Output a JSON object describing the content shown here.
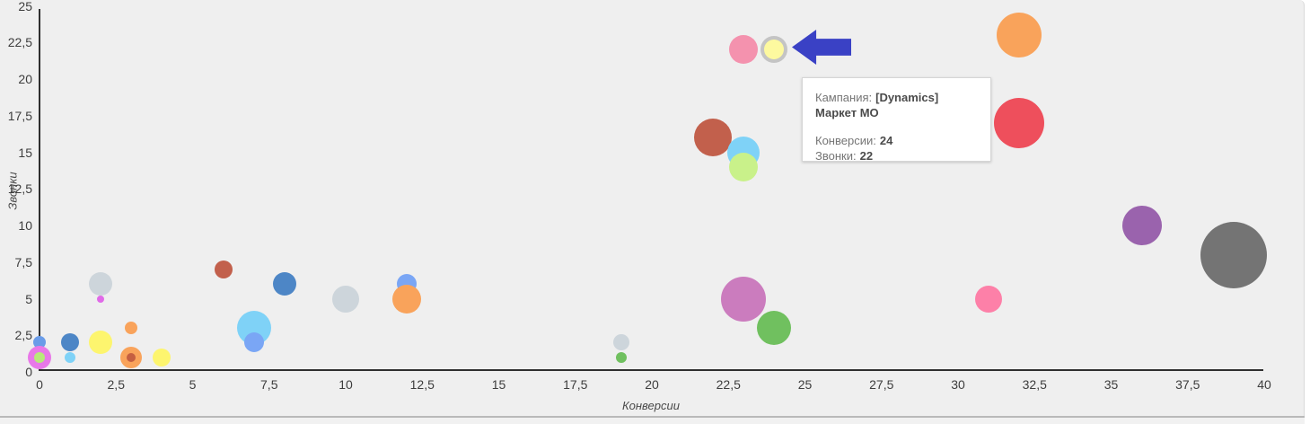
{
  "colors": {
    "background": "#efefef",
    "axis_line": "#2f2f2f",
    "divider": "#b9b9b9",
    "cursor_arrow": "#3a41c5"
  },
  "tooltip": {
    "campaign_label": "Кампания:",
    "campaign_value": "[Dynamics] Маркет МО",
    "conversions_label": "Конверсии:",
    "conversions_value": "24",
    "calls_label": "Звонки:",
    "calls_value": "22"
  },
  "chart_data": {
    "type": "scatter",
    "subtype": "bubble",
    "title": "",
    "xlabel": "Конверсии",
    "ylabel": "Звонки",
    "xlim": [
      0,
      40
    ],
    "ylim": [
      0,
      25
    ],
    "grid": false,
    "legend": "none",
    "x_ticks": [
      "0",
      "2,5",
      "5",
      "7,5",
      "10",
      "12,5",
      "15",
      "17,5",
      "20",
      "22,5",
      "25",
      "27,5",
      "30",
      "32,5",
      "35",
      "37,5",
      "40"
    ],
    "y_ticks": [
      "0",
      "2,5",
      "5",
      "7,5",
      "10",
      "12,5",
      "15",
      "17,5",
      "20",
      "22,5",
      "25"
    ],
    "points": [
      {
        "x": 0,
        "y": 2,
        "r": 7,
        "color": "#6a9ce8"
      },
      {
        "x": 0,
        "y": 1,
        "r": 13,
        "color": "#e878e8"
      },
      {
        "x": 0,
        "y": 1,
        "r": 6,
        "color": "#b8e87a"
      },
      {
        "x": 1,
        "y": 2,
        "r": 10,
        "color": "#4d86c6"
      },
      {
        "x": 1,
        "y": 1,
        "r": 6,
        "color": "#7fd2f7"
      },
      {
        "x": 2,
        "y": 6,
        "r": 13,
        "color": "#cdd5db"
      },
      {
        "x": 2,
        "y": 5,
        "r": 4,
        "color": "#e06ae8"
      },
      {
        "x": 2,
        "y": 2,
        "r": 13,
        "color": "#fdf56e"
      },
      {
        "x": 3,
        "y": 3,
        "r": 7,
        "color": "#f9a35b"
      },
      {
        "x": 3,
        "y": 1,
        "r": 12,
        "color": "#f9a35b"
      },
      {
        "x": 3,
        "y": 1,
        "r": 5,
        "color": "#c55f41"
      },
      {
        "x": 4,
        "y": 1,
        "r": 10,
        "color": "#fdf56e"
      },
      {
        "x": 6,
        "y": 7,
        "r": 10,
        "color": "#c2604c"
      },
      {
        "x": 7,
        "y": 3,
        "r": 19,
        "color": "#7fd2f7"
      },
      {
        "x": 7,
        "y": 2,
        "r": 11,
        "color": "#7aa6f5"
      },
      {
        "x": 8,
        "y": 6,
        "r": 13,
        "color": "#4d86c6"
      },
      {
        "x": 10,
        "y": 5,
        "r": 15,
        "color": "#cdd5db"
      },
      {
        "x": 12,
        "y": 6,
        "r": 11,
        "color": "#7aa6f5"
      },
      {
        "x": 12,
        "y": 5,
        "r": 16,
        "color": "#f9a35b"
      },
      {
        "x": 19,
        "y": 2,
        "r": 9,
        "color": "#cdd5db"
      },
      {
        "x": 19,
        "y": 1,
        "r": 6,
        "color": "#70c05f"
      },
      {
        "x": 22,
        "y": 16,
        "r": 21,
        "color": "#c2604c"
      },
      {
        "x": 23,
        "y": 15,
        "r": 18,
        "color": "#7fd2f7"
      },
      {
        "x": 23,
        "y": 14,
        "r": 16,
        "color": "#c9f18a"
      },
      {
        "x": 23,
        "y": 22,
        "r": 16,
        "color": "#f492ae"
      },
      {
        "x": 24,
        "y": 22,
        "r": 11,
        "color": "#fdf99f",
        "highlight": true
      },
      {
        "x": 23,
        "y": 5,
        "r": 25,
        "color": "#cb7cbe"
      },
      {
        "x": 24,
        "y": 3,
        "r": 19,
        "color": "#70c05f"
      },
      {
        "x": 31,
        "y": 5,
        "r": 15,
        "color": "#fd80a8"
      },
      {
        "x": 32,
        "y": 23,
        "r": 25,
        "color": "#f9a35b"
      },
      {
        "x": 32,
        "y": 17,
        "r": 28,
        "color": "#ee4f5c"
      },
      {
        "x": 36,
        "y": 10,
        "r": 22,
        "color": "#9a63ad"
      },
      {
        "x": 39,
        "y": 8,
        "r": 37,
        "color": "#747474"
      }
    ]
  }
}
